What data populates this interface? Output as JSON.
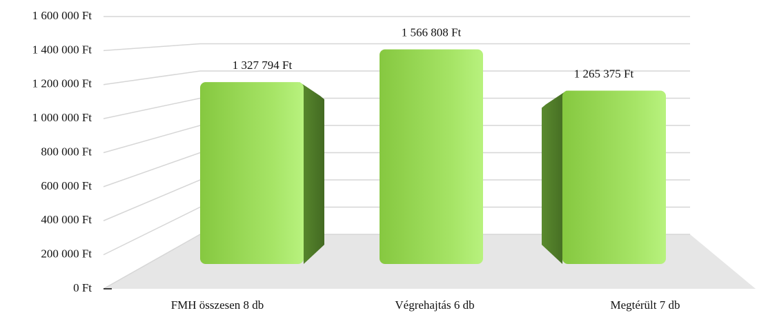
{
  "chart_data": {
    "type": "bar3d",
    "categories": [
      "FMH összesen 8 db",
      "Végrehajtás 6 db",
      "Megtérült 7 db"
    ],
    "values": [
      1327794,
      1566808,
      1265375
    ],
    "value_labels": [
      "1 327 794 Ft",
      "1 566 808 Ft",
      "1 265 375 Ft"
    ],
    "color": "#9ad656",
    "ylim": [
      0,
      1600000
    ],
    "yticks": [
      {
        "value": 0,
        "label": "0 Ft"
      },
      {
        "value": 200000,
        "label": "200 000 Ft"
      },
      {
        "value": 400000,
        "label": "400 000 Ft"
      },
      {
        "value": 600000,
        "label": "600 000 Ft"
      },
      {
        "value": 800000,
        "label": "800 000 Ft"
      },
      {
        "value": 1000000,
        "label": "1 000 000 Ft"
      },
      {
        "value": 1200000,
        "label": "1 200 000 Ft"
      },
      {
        "value": 1400000,
        "label": "1 400 000 Ft"
      },
      {
        "value": 1600000,
        "label": "1 600 000 Ft"
      }
    ],
    "grid": true
  }
}
